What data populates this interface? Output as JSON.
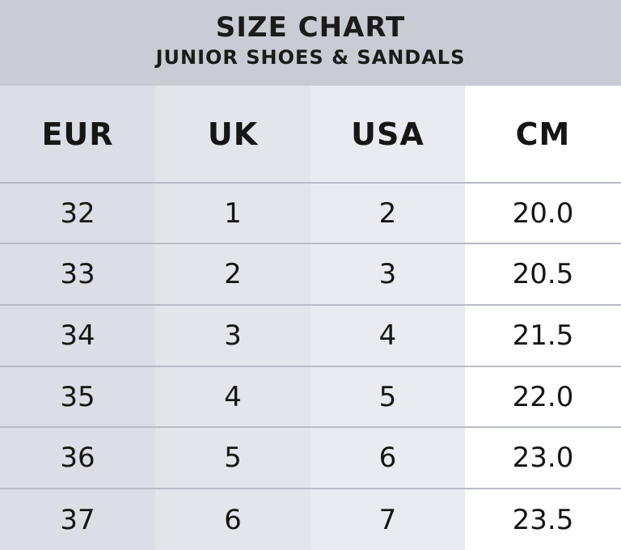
{
  "header": {
    "title": "SIZE CHART",
    "subtitle": "JUNIOR SHOES & SANDALS"
  },
  "table": {
    "columns": [
      "EUR",
      "UK",
      "USA",
      "CM"
    ],
    "rows": [
      [
        "32",
        "1",
        "2",
        "20.0"
      ],
      [
        "33",
        "2",
        "3",
        "20.5"
      ],
      [
        "34",
        "3",
        "4",
        "21.5"
      ],
      [
        "35",
        "4",
        "5",
        "22.0"
      ],
      [
        "36",
        "5",
        "6",
        "23.0"
      ],
      [
        "37",
        "6",
        "7",
        "23.5"
      ]
    ]
  },
  "colors": {
    "title_bar": "#c9ccd3",
    "column_1": "#dbdee4",
    "column_2": "#e2e5ea",
    "column_3": "#e9ebf0",
    "column_4": "#ffffff",
    "divider": "#b8bcc6",
    "text": "#161616"
  }
}
